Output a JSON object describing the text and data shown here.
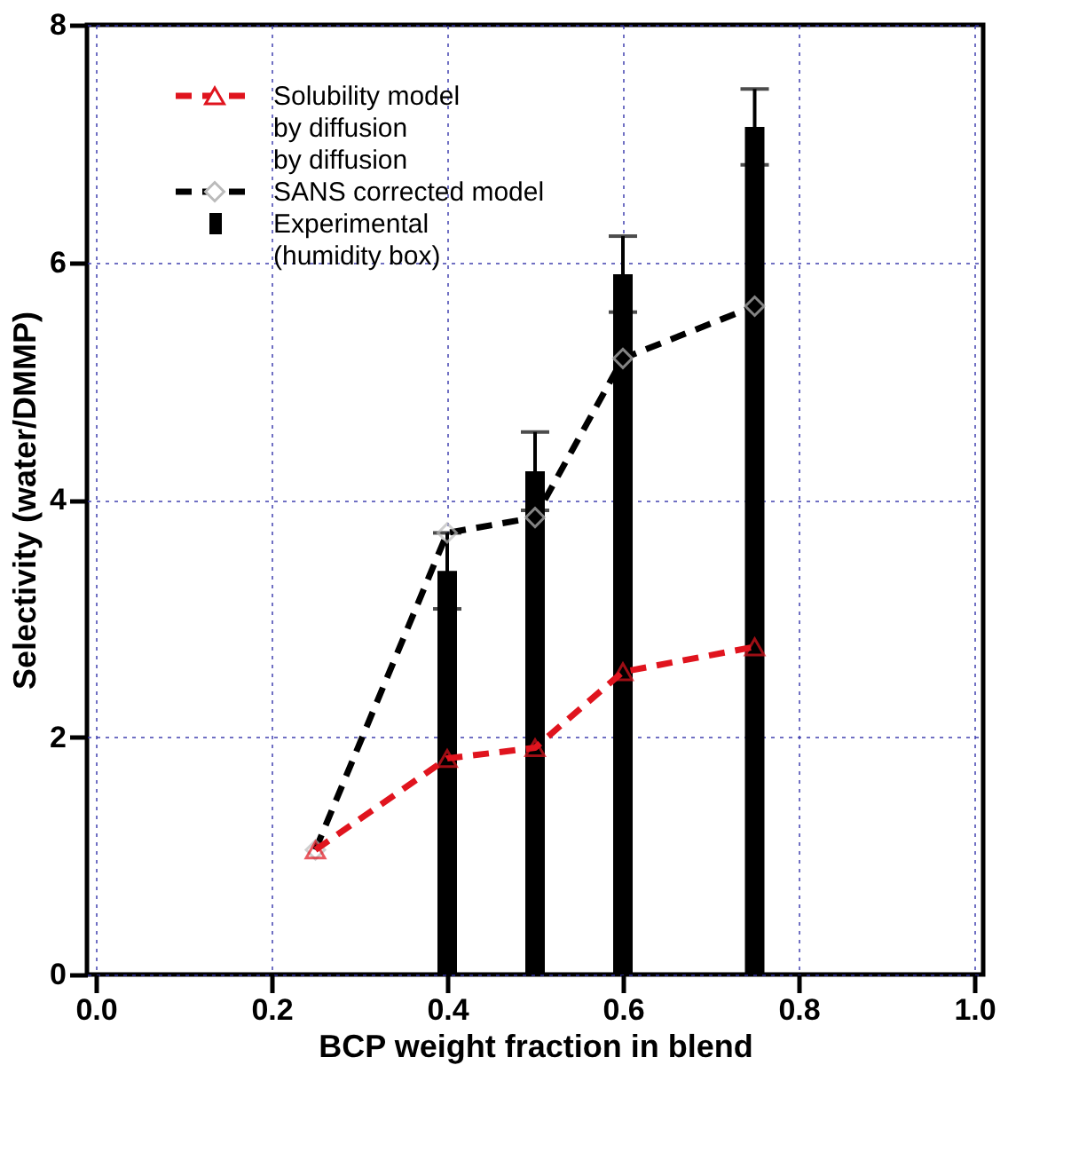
{
  "chart_data": {
    "type": "line",
    "xlabel": "BCP weight fraction in blend",
    "ylabel": "Selectivity (water/DMMP)",
    "xlim": [
      0,
      1
    ],
    "ylim": [
      0,
      8
    ],
    "xticks": [
      {
        "value": 0,
        "label": "0.0"
      },
      {
        "value": 0.2,
        "label": "0.2"
      },
      {
        "value": 0.4,
        "label": "0.4"
      },
      {
        "value": 0.6,
        "label": "0.6"
      },
      {
        "value": 0.8,
        "label": "0.8"
      },
      {
        "value": 1,
        "label": "1.0"
      }
    ],
    "yticks": [
      0,
      2,
      4,
      6,
      8
    ],
    "grid": true,
    "legend": "top left",
    "series": [
      {
        "name": "Experimental\n(humidity box)",
        "type": "bar",
        "color": "#000000",
        "x": [
          0.4,
          0.5,
          0.6,
          0.75
        ],
        "values": [
          3.4,
          4.24,
          5.9,
          7.14
        ],
        "errors": [
          0.32,
          0.33,
          0.32,
          0.32
        ]
      },
      {
        "name": "SANS corrected model",
        "color": "#000000",
        "marker": "diamond",
        "line_style": "dashed",
        "x": [
          0.25,
          0.4,
          0.5,
          0.6,
          0.75
        ],
        "values": [
          1.05,
          3.72,
          3.85,
          5.19,
          5.63
        ]
      },
      {
        "name": "Solubility model\nby diffusion\nby diffusion",
        "color": "#e0141e",
        "marker": "triangle",
        "line_style": "dashed",
        "x": [
          0.25,
          0.4,
          0.5,
          0.6,
          0.75
        ],
        "values": [
          1.05,
          1.82,
          1.91,
          2.55,
          2.76
        ]
      }
    ]
  }
}
